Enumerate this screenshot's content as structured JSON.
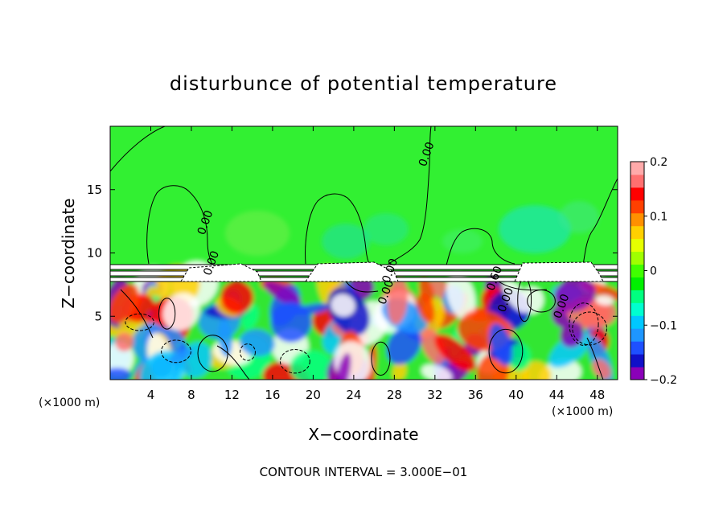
{
  "chart_data": {
    "type": "heatmap",
    "title": "disturbunce of potential temperature",
    "xlabel": "X−coordinate",
    "ylabel": "Z−coordinate",
    "x_unit": "(×1000 m)",
    "z_unit": "(×1000 m)",
    "xlim": [
      0,
      50
    ],
    "ylim": [
      0,
      20
    ],
    "x_ticks": [
      4,
      8,
      12,
      16,
      20,
      24,
      28,
      32,
      36,
      40,
      44,
      48
    ],
    "y_ticks": [
      5,
      10,
      15
    ],
    "x_tick_labels": [
      "4",
      "8",
      "12",
      "16",
      "20",
      "24",
      "28",
      "32",
      "36",
      "40",
      "44",
      "48"
    ],
    "y_tick_labels": [
      "5",
      "10",
      "15"
    ],
    "colorbar": {
      "min": -0.2,
      "max": 0.2,
      "ticks": [
        0.2,
        0.1,
        0,
        -0.1,
        -0.2
      ],
      "tick_labels": [
        "0.2",
        "0.1",
        "0",
        "−0.1",
        "−0.2"
      ],
      "colors": [
        "#8a00b8",
        "#1010c8",
        "#1e50ff",
        "#1e96ff",
        "#00c8ff",
        "#00ffd0",
        "#00ff80",
        "#00f000",
        "#40ff00",
        "#a0ff00",
        "#e6ff00",
        "#ffd000",
        "#ff9000",
        "#ff4000",
        "#ff0000",
        "#ff7070",
        "#ffaaaa"
      ]
    },
    "contour_interval_text": "CONTOUR INTERVAL = 3.000E−01",
    "contour_labels": [
      {
        "text": "0.00",
        "x": 31.5,
        "z": 17.7
      },
      {
        "text": "0.00",
        "x": 9.7,
        "z": 12.3
      },
      {
        "text": "0.00",
        "x": 10.3,
        "z": 9.1
      },
      {
        "text": "0.00",
        "x": 27.5,
        "z": 6.8
      },
      {
        "text": "0.00",
        "x": 39.3,
        "z": 6.2
      },
      {
        "text": "0.00",
        "x": 44.8,
        "z": 5.7
      },
      {
        "text": "0.60",
        "x": 38.2,
        "z": 7.9
      },
      {
        "text": "0.00",
        "x": 27.9,
        "z": 8.5
      }
    ],
    "grid": false,
    "legend": "right"
  }
}
